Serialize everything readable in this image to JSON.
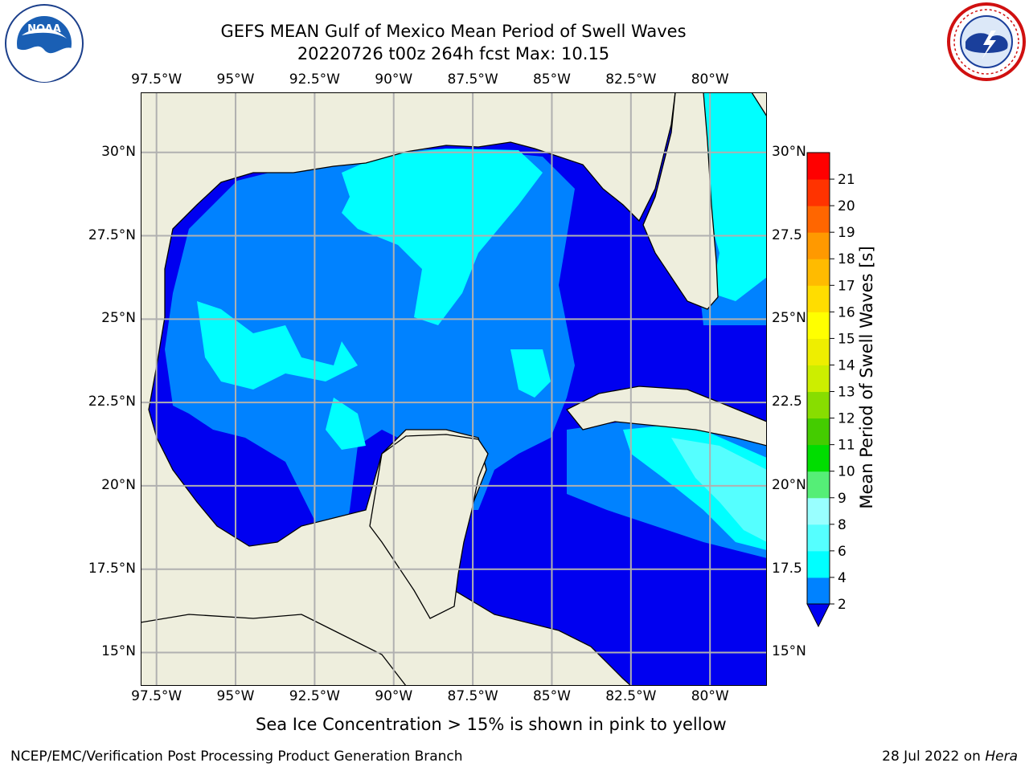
{
  "title": {
    "line1": "GEFS MEAN Gulf of Mexico Mean Period of Swell Waves",
    "line2": "20220726 t00z 264h fcst   Max: 10.15"
  },
  "logos": {
    "left": "noaa-logo",
    "right": "national-weather-service-logo",
    "noaa_text": "NOAA"
  },
  "map": {
    "longitude_labels": [
      "97.5°W",
      "95°W",
      "92.5°W",
      "90°W",
      "87.5°W",
      "85°W",
      "82.5°W",
      "80°W"
    ],
    "latitude_labels_left": [
      "30°N",
      "27.5°N",
      "25°N",
      "22.5°N",
      "20°N",
      "17.5°N",
      "15°N"
    ],
    "latitude_labels_right": [
      "30°N",
      "27.5",
      "25°N",
      "22.5",
      "20°N",
      "17.5",
      "15°N"
    ],
    "longitudes": [
      -97.5,
      -95,
      -92.5,
      -90,
      -87.5,
      -85,
      -82.5,
      -80
    ],
    "latitudes": [
      30,
      27.5,
      25,
      22.5,
      20,
      17.5,
      15
    ],
    "extent": {
      "lon_min": -98,
      "lon_max": -78.2,
      "lat_min": 14,
      "lat_max": 31.8
    },
    "colors": {
      "land": "#eeeedd",
      "ocean_2_4": "#0082ff",
      "ocean_below_2": "#0000f0",
      "ocean_4_6": "#00ffff",
      "grid": "#b0b0b0"
    }
  },
  "colorbar": {
    "label": "Mean Period of Swell Waves [s]",
    "ticks": [
      "2",
      "4",
      "6",
      "8",
      "9",
      "10",
      "11",
      "12",
      "13",
      "14",
      "15",
      "16",
      "17",
      "18",
      "19",
      "20",
      "21"
    ],
    "colors": [
      "#0082ff",
      "#00ffff",
      "#55ffff",
      "#99ffff",
      "#55ee77",
      "#00dd00",
      "#44cc00",
      "#88dd00",
      "#ccee00",
      "#eeee00",
      "#ffff00",
      "#ffdd00",
      "#ffbb00",
      "#ff9900",
      "#ff6600",
      "#ff3300",
      "#ff0000"
    ],
    "extend_color": "#0000f0"
  },
  "footer": {
    "note": "Sea Ice Concentration > 15% is shown in pink to yellow",
    "credit": "NCEP/EMC/Verification Post Processing Product Generation Branch",
    "date": "28 Jul 2022 on ",
    "machine": "Hera"
  }
}
